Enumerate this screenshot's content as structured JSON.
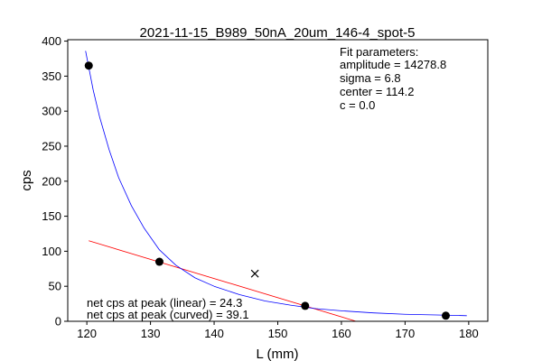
{
  "chart_data": {
    "type": "scatter",
    "title": "2021-11-15_B989_50nA_20um_146-4_spot-5",
    "xlabel": "L (mm)",
    "ylabel": "cps",
    "xlim": [
      117.0,
      183.0
    ],
    "ylim": [
      0,
      402
    ],
    "xticks": [
      120,
      130,
      140,
      150,
      160,
      170,
      180
    ],
    "yticks": [
      0,
      50,
      100,
      150,
      200,
      250,
      300,
      350,
      400
    ],
    "grid": false,
    "points": [
      {
        "x": 120.3,
        "y": 365
      },
      {
        "x": 131.4,
        "y": 85
      },
      {
        "x": 154.3,
        "y": 22
      },
      {
        "x": 176.4,
        "y": 8
      }
    ],
    "peak_marker": {
      "x": 146.4,
      "y": 68
    },
    "linear_fit": {
      "color": "#ff0000",
      "x": [
        120.3,
        162.3
      ],
      "y": [
        115,
        0
      ]
    },
    "curved_fit": {
      "color": "#0000ff",
      "x": [
        119.8,
        121.0,
        122.0,
        123.5,
        125.0,
        127.0,
        129.0,
        131.4,
        134.0,
        137.0,
        140.0,
        144.0,
        148.0,
        152.0,
        156.0,
        160.0,
        165.0,
        170.0,
        175.0,
        179.7
      ],
      "y": [
        386,
        330,
        292,
        245,
        205,
        165,
        133,
        102,
        80,
        62,
        50,
        38,
        29,
        23,
        18,
        15,
        12,
        10,
        9,
        8
      ]
    },
    "fit_parameters": {
      "heading": "Fit parameters:",
      "lines": [
        "amplitude = 14278.8",
        "sigma = 6.8",
        "center = 114.2",
        "c = 0.0"
      ]
    },
    "net_cps": {
      "linear": "net cps at peak (linear) = 24.3",
      "curved": "net cps at peak (curved) = 39.1"
    }
  }
}
